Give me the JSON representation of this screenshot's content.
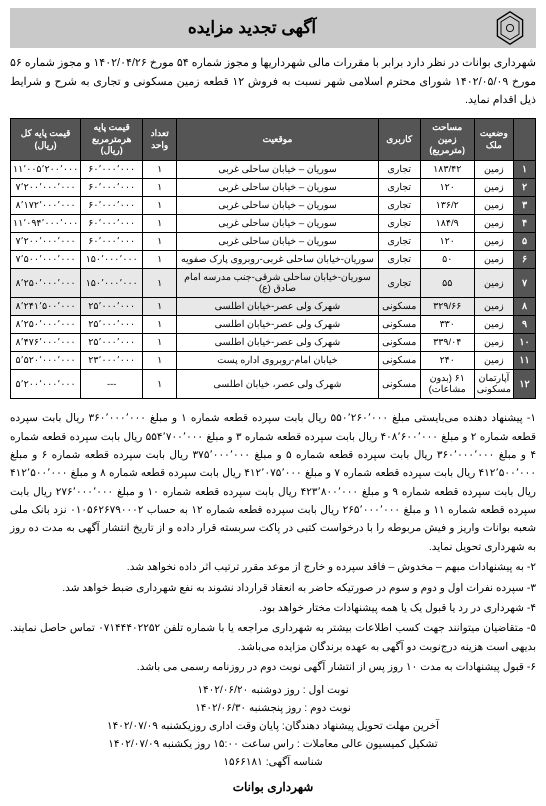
{
  "header": {
    "title": "آگهی تجدید مزایده"
  },
  "intro": "شهرداری بوانات در نظر دارد برابر با مقررات مالی شهرداریها و مجوز شماره ۵۴ مورخ ۱۴۰۲/۰۴/۲۶ و مجوز شماره ۵۶ مورخ ۱۴۰۲/۰۵/۰۹ شورای محترم اسلامی شهر نسبت به فروش ۱۲ قطعه زمین مسکونی و تجاری به شرح و شرایط ذیل اقدام نماید.",
  "columns": [
    "",
    "وضعیت ملک",
    "مساحت زمین (مترمربع)",
    "کاربری",
    "موقعیت",
    "تعداد واحد",
    "قیمت پایه هرمترمربع (ریال)",
    "قیمت پایه کل (ریال)"
  ],
  "col_widths": [
    "22px",
    "38px",
    "54px",
    "42px",
    "auto",
    "34px",
    "62px",
    "68px"
  ],
  "rows": [
    {
      "n": "۱",
      "stat": "زمین",
      "area": "۱۸۳/۴۲",
      "use": "تجاری",
      "loc": "سوریان – خیابان ساحلی غربی",
      "units": "۱",
      "ppm": "۶۰٬۰۰۰٬۰۰۰",
      "total": "۱۱٬۰۰۵٬۲۰۰٬۰۰۰",
      "hl": false
    },
    {
      "n": "۲",
      "stat": "زمین",
      "area": "۱۲۰",
      "use": "تجاری",
      "loc": "سوریان – خیابان ساحلی غربی",
      "units": "۱",
      "ppm": "۶۰٬۰۰۰٬۰۰۰",
      "total": "۷٬۲۰۰٬۰۰۰٬۰۰۰",
      "hl": false
    },
    {
      "n": "۳",
      "stat": "زمین",
      "area": "۱۳۶/۲",
      "use": "تجاری",
      "loc": "سوریان – خیابان ساحلی غربی",
      "units": "۱",
      "ppm": "۶۰٬۰۰۰٬۰۰۰",
      "total": "۸٬۱۷۲٬۰۰۰٬۰۰۰",
      "hl": false
    },
    {
      "n": "۴",
      "stat": "زمین",
      "area": "۱۸۴/۹",
      "use": "تجاری",
      "loc": "سوریان – خیابان ساحلی غربی",
      "units": "۱",
      "ppm": "۶۰٬۰۰۰٬۰۰۰",
      "total": "۱۱٬۰۹۴٬۰۰۰٬۰۰۰",
      "hl": false
    },
    {
      "n": "۵",
      "stat": "زمین",
      "area": "۱۲۰",
      "use": "تجاری",
      "loc": "سوریان – خیابان ساحلی غربی",
      "units": "۱",
      "ppm": "۶۰٬۰۰۰٬۰۰۰",
      "total": "۷٬۲۰۰٬۰۰۰٬۰۰۰",
      "hl": false
    },
    {
      "n": "۶",
      "stat": "زمین",
      "area": "۵۰",
      "use": "تجاری",
      "loc": "سوریان-خیابان ساحلی غربی-روبروی پارک صفویه",
      "units": "۱",
      "ppm": "۱۵۰٬۰۰۰٬۰۰۰",
      "total": "۷٬۵۰۰٬۰۰۰٬۰۰۰",
      "hl": false
    },
    {
      "n": "۷",
      "stat": "زمین",
      "area": "۵۵",
      "use": "تجاری",
      "loc": "سوریان-خیابان ساحلی شرقی-جنب مدرسه امام صادق (ع)",
      "units": "۱",
      "ppm": "۱۵۰٬۰۰۰٬۰۰۰",
      "total": "۸٬۲۵۰٬۰۰۰٬۰۰۰",
      "hl": true
    },
    {
      "n": "۸",
      "stat": "زمین",
      "area": "۳۲۹/۶۶",
      "use": "مسکونی",
      "loc": "شهرک ولی عصر-خیابان اطلسی",
      "units": "۱",
      "ppm": "۲۵٬۰۰۰٬۰۰۰",
      "total": "۸٬۲۴۱٬۵۰۰٬۰۰۰",
      "hl": true
    },
    {
      "n": "۹",
      "stat": "زمین",
      "area": "۳۳۰",
      "use": "مسکونی",
      "loc": "شهرک ولی عصر-خیابان اطلسی",
      "units": "۱",
      "ppm": "۲۵٬۰۰۰٬۰۰۰",
      "total": "۸٬۲۵۰٬۰۰۰٬۰۰۰",
      "hl": false
    },
    {
      "n": "۱۰",
      "stat": "زمین",
      "area": "۳۳۹/۰۴",
      "use": "مسکونی",
      "loc": "شهرک ولی عصر-خیابان اطلسی",
      "units": "۱",
      "ppm": "۲۵٬۰۰۰٬۰۰۰",
      "total": "۸٬۴۷۶٬۰۰۰٬۰۰۰",
      "hl": false
    },
    {
      "n": "۱۱",
      "stat": "زمین",
      "area": "۲۴۰",
      "use": "مسکونی",
      "loc": "خیابان امام-روبروی اداره پست",
      "units": "۱",
      "ppm": "۲۳٬۰۰۰٬۰۰۰",
      "total": "۵٬۵۲۰٬۰۰۰٬۰۰۰",
      "hl": false
    },
    {
      "n": "۱۲",
      "stat": "آپارتمان مسکونی",
      "area": "۶۱ (بدون مشاعات)",
      "use": "مسکونی",
      "loc": "شهرک ولی عصر، خیابان اطلسی",
      "units": "۱",
      "ppm": "---",
      "total": "۵٬۲۰۰٬۰۰۰٬۰۰۰",
      "hl": false
    }
  ],
  "notes": [
    "۱- پیشنهاد دهنده می‌بایستی مبلغ ۵۵۰٬۲۶۰٬۰۰۰ ریال بابت سپرده قطعه شماره ۱ و مبلغ ۳۶۰٬۰۰۰٬۰۰۰ ریال بابت سپرده قطعه شماره ۲ و مبلغ ۴۰۸٬۶۰۰٬۰۰۰ ریال بابت سپرده قطعه شماره ۳ و مبلغ ۵۵۴٬۷۰۰٬۰۰۰ ریال بابت سپرده قطعه شماره ۴ و مبلغ ۳۶۰٬۰۰۰٬۰۰۰ ریال بابت سپرده قطعه شماره ۵ و مبلغ ۳۷۵٬۰۰۰٬۰۰۰ ریال بابت سپرده قطعه شماره ۶ و مبلغ ۴۱۲٬۵۰۰٬۰۰۰ ریال بابت سپرده قطعه شماره ۷ و مبلغ ۴۱۲٬۰۷۵٬۰۰۰ ریال بابت سپرده قطعه شماره ۸ و مبلغ ۴۱۲٬۵۰۰٬۰۰۰ ریال بابت سپرده قطعه شماره ۹ و مبلغ ۴۲۳٬۸۰۰٬۰۰۰ ریال بابت سپرده قطعه شماره ۱۰ و مبلغ ۲۷۶٬۰۰۰٬۰۰۰ ریال بابت سپرده قطعه شماره ۱۱ و مبلغ ۲۶۵٬۰۰۰٬۰۰۰ ریال بابت سپرده قطعه شماره ۱۲ به حساب ۰۱۰۵۶۲۶۷۹۰۰۰۲ نزد بانک ملی شعبه بوانات واریز و فیش مربوطه را با درخواست کتبی در پاکت سربسته قرار داده و از تاریخ انتشار آگهی به مدت ده روز به شهرداری تحویل نماید.",
    "۲- به پیشنهادات مبهم – مخدوش – فاقد سپرده و خارج از موعد مقرر ترتیب اثر داده نخواهد شد.",
    "۳- سپرده نفرات اول و دوم و سوم در صورتیکه حاضر به انعقاد قرارداد نشوند به نفع شهرداری ضبط خواهد شد.",
    "۴- شهرداری در رد یا قبول یک یا همه پیشنهادات مختار خواهد بود.",
    "۵- متقاضیان میتوانند جهت کسب اطلاعات بیشتر به شهرداری مراجعه یا با شماره تلفن ۰۷۱۴۴۴۰۲۲۵۲ تماس حاصل نمایند. بدیهی است هزینه درج‌نوبت دو آگهی به عهده برندگان مزایده می‌باشد.",
    "۶- قبول پیشنهادات به مدت ۱۰ روز پس از انتشار آگهی نوبت دوم در روزنامه رسمی  می باشد."
  ],
  "footer": {
    "date1": "نوبت اول : روز دوشنبه  ۱۴۰۲/۰۶/۲۰",
    "date2": "نوبت دوم : روز پنجشنبه  ۱۴۰۲/۰۶/۳۰",
    "deadline": "آخرین مهلت تحویل پیشنهاد دهندگان: پایان وقت اداری روزیکشنبه  ۱۴۰۲/۰۷/۰۹",
    "commission": "تشکیل کمیسیون عالی معاملات : راس ساعت ۱۵:۰۰ روز یکشنبه  ۱۴۰۲/۰۷/۰۹",
    "adid": "شناسه آگهی: ۱۵۶۶۱۸۱"
  },
  "signature": "شهرداری بوانات"
}
